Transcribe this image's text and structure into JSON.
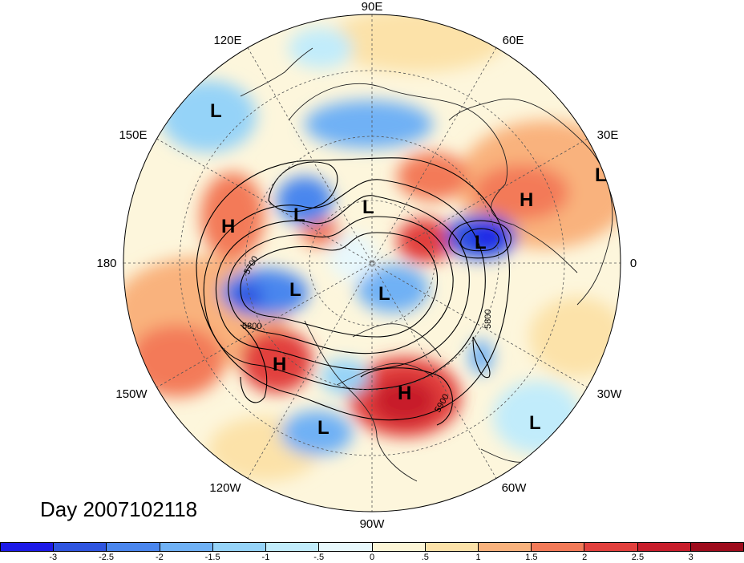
{
  "map": {
    "longitude_labels": [
      "90E",
      "60E",
      "30E",
      "0",
      "30W",
      "60W",
      "90W",
      "120W",
      "150W",
      "180",
      "150E",
      "120E"
    ],
    "contour_labels": [
      "5700",
      "5800",
      "5800",
      "5900"
    ],
    "pressure_centers": [
      "L",
      "L",
      "L",
      "L",
      "L",
      "L",
      "L",
      "L",
      "L",
      "H",
      "H",
      "H",
      "H"
    ]
  },
  "day_label": "Day 2007102118",
  "colorbar": {
    "ticks": [
      "-3",
      "-2.5",
      "-2",
      "-1.5",
      "-1",
      "-.5",
      "0",
      ".5",
      "1",
      "1.5",
      "2",
      "2.5",
      "3"
    ],
    "colors": [
      "#1d1ae8",
      "#2f55e0",
      "#4a86ee",
      "#6fb1f5",
      "#95d3f8",
      "#c1ecfb",
      "#e8f8fc",
      "#fcf5d6",
      "#fce2a9",
      "#f9b27d",
      "#f37a58",
      "#e2403d",
      "#c81d2b",
      "#9e0c1c"
    ]
  }
}
